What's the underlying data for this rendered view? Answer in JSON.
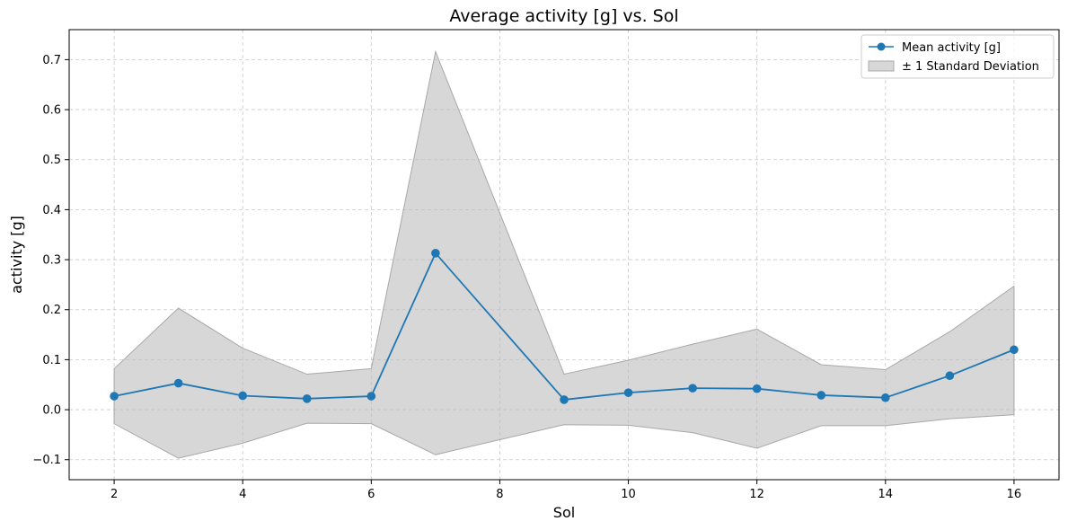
{
  "chart_data": {
    "type": "line",
    "title": "Average activity [g] vs. Sol",
    "xlabel": "Sol",
    "ylabel": "activity [g]",
    "x": [
      2,
      3,
      4,
      5,
      6,
      7,
      9,
      10,
      11,
      12,
      13,
      14,
      15,
      16
    ],
    "series": [
      {
        "name": "Mean activity [g]",
        "color": "#1f77b4",
        "marker": "circle",
        "values": [
          0.027,
          0.053,
          0.028,
          0.022,
          0.027,
          0.313,
          0.02,
          0.034,
          0.043,
          0.042,
          0.029,
          0.024,
          0.068,
          0.12
        ]
      }
    ],
    "band": {
      "name": "± 1 Standard Deviation",
      "color": "#bdbdbd",
      "upper": [
        0.082,
        0.203,
        0.123,
        0.071,
        0.082,
        0.716,
        0.071,
        0.099,
        0.131,
        0.161,
        0.09,
        0.08,
        0.156,
        0.247
      ],
      "lower": [
        -0.028,
        -0.097,
        -0.067,
        -0.027,
        -0.028,
        -0.09,
        -0.03,
        -0.031,
        -0.046,
        -0.077,
        -0.032,
        -0.032,
        -0.018,
        -0.01
      ]
    },
    "xlim": [
      1.3,
      16.7
    ],
    "ylim": [
      -0.14,
      0.76
    ],
    "xticks": [
      2,
      4,
      6,
      8,
      10,
      12,
      14,
      16
    ],
    "yticks": [
      -0.1,
      0.0,
      0.1,
      0.2,
      0.3,
      0.4,
      0.5,
      0.6,
      0.7
    ],
    "ytick_labels": [
      "−0.1",
      "0.0",
      "0.1",
      "0.2",
      "0.3",
      "0.4",
      "0.5",
      "0.6",
      "0.7"
    ],
    "grid": true,
    "legend_position": "top-right"
  }
}
